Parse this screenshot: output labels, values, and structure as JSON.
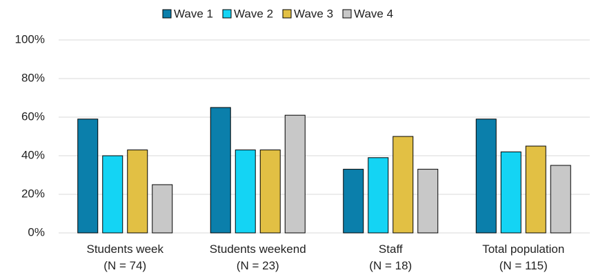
{
  "chart_data": {
    "type": "bar",
    "categories": [
      "Students week\n(N = 74)",
      "Students weekend\n(N = 23)",
      "Staff\n(N = 18)",
      "Total population\n(N = 115)"
    ],
    "series": [
      {
        "name": "Wave 1",
        "color": "#0b7fab",
        "values": [
          59,
          65,
          33,
          59
        ]
      },
      {
        "name": "Wave 2",
        "color": "#14d4f4",
        "values": [
          40,
          43,
          39,
          42
        ]
      },
      {
        "name": "Wave 3",
        "color": "#e2c044",
        "values": [
          43,
          43,
          50,
          45
        ]
      },
      {
        "name": "Wave 4",
        "color": "#c8c8c8",
        "values": [
          25,
          61,
          33,
          35
        ]
      }
    ],
    "ylim": [
      0,
      100
    ],
    "yticks": [
      {
        "value": 0,
        "label": "0%"
      },
      {
        "value": 20,
        "label": "20%"
      },
      {
        "value": 40,
        "label": "40%"
      },
      {
        "value": 60,
        "label": "60%"
      },
      {
        "value": 80,
        "label": "80%"
      },
      {
        "value": 100,
        "label": "100%"
      }
    ],
    "grid": true
  }
}
